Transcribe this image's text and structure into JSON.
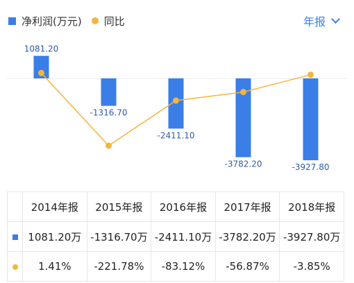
{
  "legend": {
    "series1": "净利润(万元)",
    "series2": "同比"
  },
  "period_selector": {
    "label": "年报"
  },
  "colors": {
    "bar": "#3a7ee8",
    "line": "#f5b53c",
    "up": "#e8433a",
    "down": "#23b86a"
  },
  "chart_data": {
    "type": "bar",
    "categories": [
      "2014年报",
      "2015年报",
      "2016年报",
      "2017年报",
      "2018年报"
    ],
    "series": [
      {
        "name": "净利润(万元)",
        "type": "bar",
        "values": [
          1081.2,
          -1316.7,
          -2411.1,
          -3782.2,
          -3927.8
        ],
        "labels": [
          "1081.20",
          "-1316.70",
          "-2411.10",
          "-3782.20",
          "-3927.80"
        ]
      },
      {
        "name": "同比",
        "type": "line",
        "values": [
          1.41,
          -221.78,
          -83.12,
          -56.87,
          -3.85
        ]
      }
    ]
  },
  "table": {
    "headers": [
      "2014年报",
      "2015年报",
      "2016年报",
      "2017年报",
      "2018年报"
    ],
    "profit_row": [
      "1081.20万",
      "-1316.70万",
      "-2411.10万",
      "-3782.20万",
      "-3927.80万"
    ],
    "yoy_row": [
      "1.41%",
      "-221.78%",
      "-83.12%",
      "-56.87%",
      "-3.85%"
    ]
  }
}
